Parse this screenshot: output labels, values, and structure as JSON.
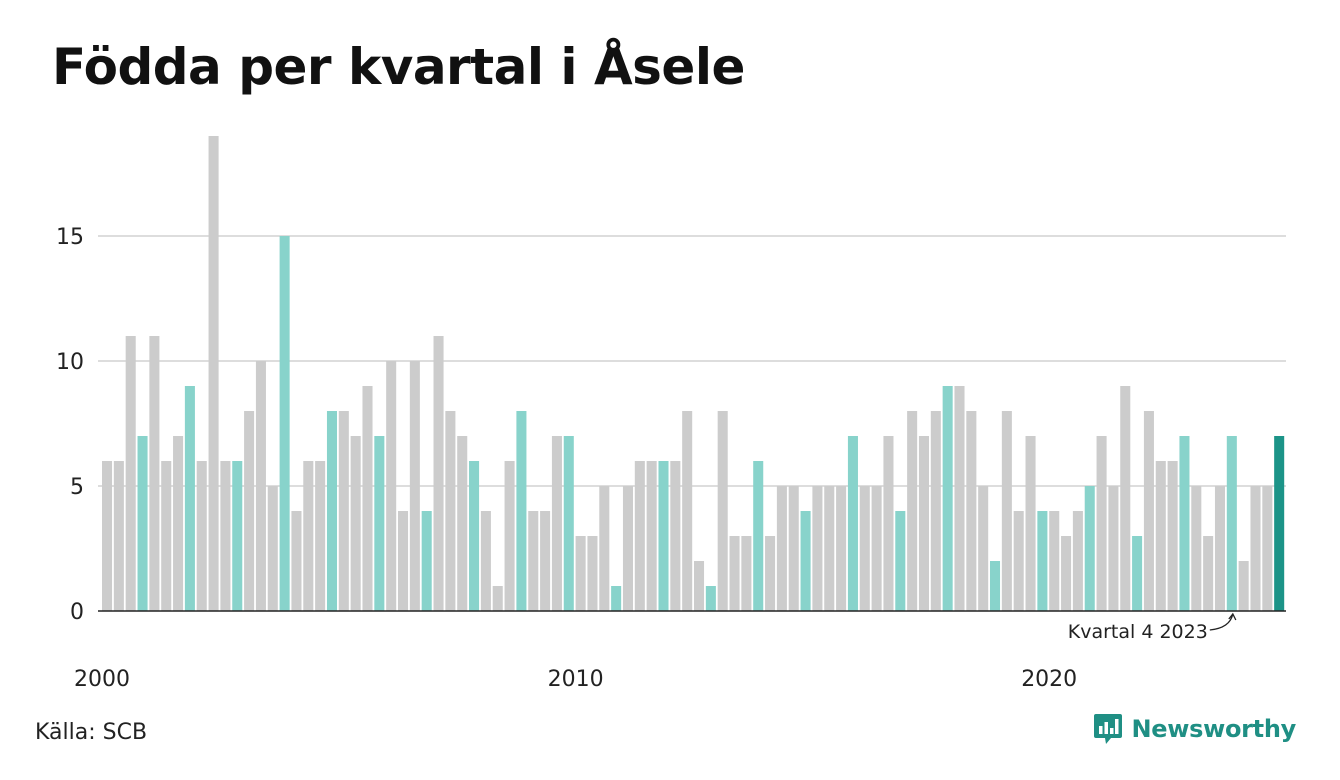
{
  "title": "Födda per kvartal i Åsele",
  "source": "Källa: SCB",
  "brand": {
    "name": "Newsworthy",
    "icon": "newsworthy-logo-icon"
  },
  "colors": {
    "bar_default": "#cccccc",
    "bar_q4": "#88d3cb",
    "bar_latest": "#1c9488",
    "gridline": "#dddddd",
    "baseline": "#222222",
    "brand": "#1f8f84"
  },
  "chart_data": {
    "type": "bar",
    "title": "Födda per kvartal i Åsele",
    "xlabel": "",
    "ylabel": "",
    "ylim": [
      0,
      19
    ],
    "yticks": [
      0,
      5,
      10,
      15
    ],
    "xticks": [
      "2000",
      "2010",
      "2020"
    ],
    "grid": true,
    "start_period": "2000 Q1",
    "end_period": "2024 Q4",
    "highlight": "Q4 bars in light teal, latest quarter in dark teal",
    "annotation": {
      "text": "Kvartal 4 2023",
      "target_index": 95
    },
    "values": [
      6,
      6,
      11,
      7,
      11,
      6,
      7,
      9,
      6,
      19,
      6,
      6,
      8,
      10,
      5,
      15,
      4,
      6,
      6,
      8,
      8,
      7,
      9,
      7,
      10,
      4,
      10,
      4,
      11,
      8,
      7,
      6,
      4,
      1,
      6,
      8,
      4,
      4,
      7,
      7,
      3,
      3,
      5,
      1,
      5,
      6,
      6,
      6,
      6,
      8,
      2,
      1,
      8,
      3,
      3,
      6,
      3,
      5,
      5,
      4,
      5,
      5,
      5,
      7,
      5,
      5,
      7,
      4,
      8,
      7,
      8,
      9,
      9,
      8,
      5,
      2,
      8,
      4,
      7,
      4,
      4,
      3,
      4,
      5,
      7,
      5,
      9,
      3,
      8,
      6,
      6,
      7,
      5,
      3,
      5,
      7,
      2,
      5,
      5,
      7
    ]
  }
}
